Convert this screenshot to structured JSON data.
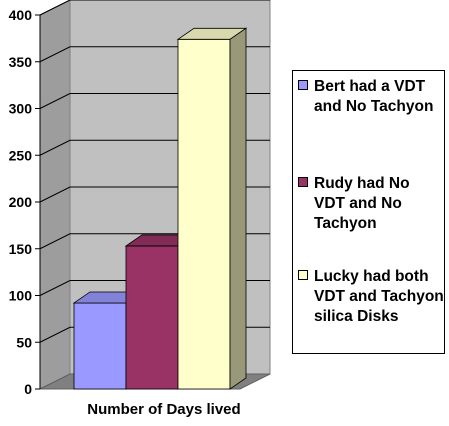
{
  "chart_data": {
    "type": "bar",
    "style": "3d",
    "categories": [
      "Number of Days lived"
    ],
    "series": [
      {
        "name": "Bert had a VDT and No Tachyon",
        "values": [
          92
        ],
        "color": "#9999ff"
      },
      {
        "name": "Rudy had No VDT and No Tachyon",
        "values": [
          153
        ],
        "color": "#993366"
      },
      {
        "name": "Lucky had both VDT and Tachyon silica Disks",
        "values": [
          374
        ],
        "color": "#ffffcc"
      }
    ],
    "xlabel": "Number of Days lived",
    "ylabel": "",
    "ylim": [
      0,
      400
    ],
    "yticks": [
      "0",
      "50",
      "100",
      "150",
      "200",
      "250",
      "300",
      "350",
      "400"
    ],
    "grid": true,
    "legend_position": "right",
    "colors": {
      "wall": "#c0c0c0",
      "floor": "#808080",
      "gridline": "#000000"
    }
  }
}
